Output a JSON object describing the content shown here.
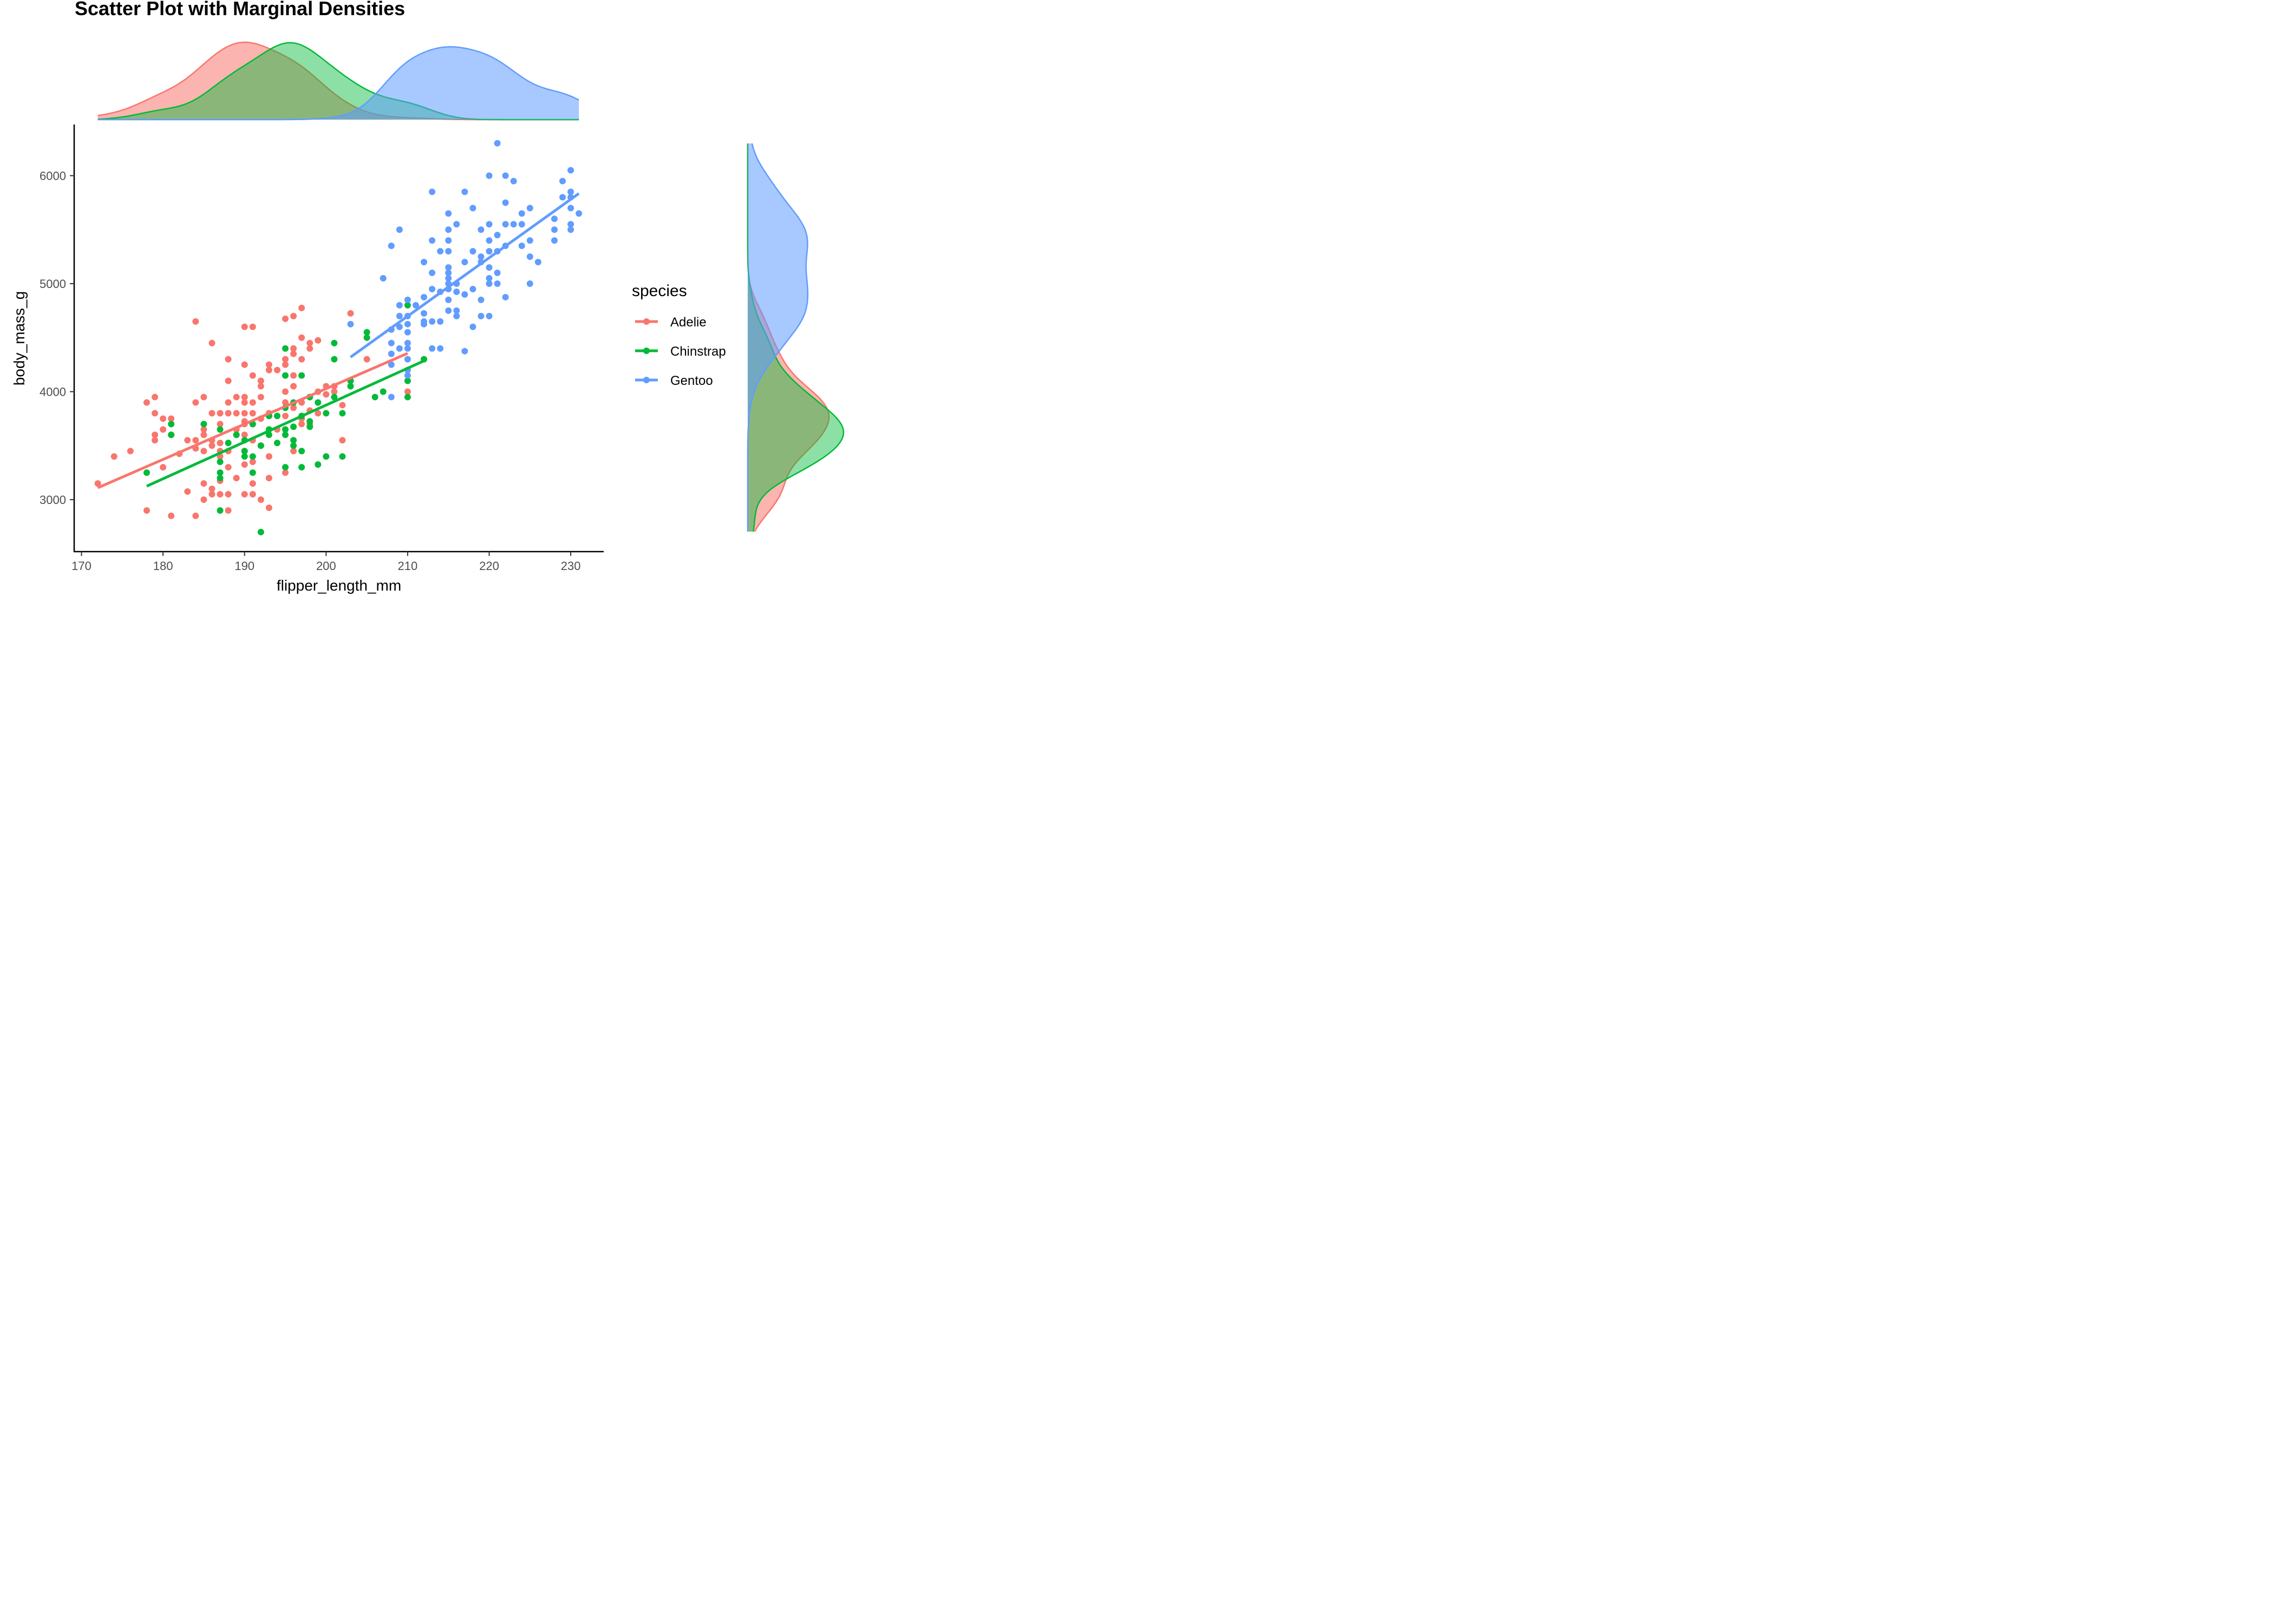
{
  "chart_data": {
    "type": "scatter",
    "title": "Scatter Plot with Marginal Densities",
    "xlabel": "flipper_length_mm",
    "ylabel": "body_mass_g",
    "xlim": [
      169,
      234
    ],
    "ylim": [
      2540,
      6460
    ],
    "xticks": [
      170,
      180,
      190,
      200,
      210,
      220,
      230
    ],
    "yticks": [
      3000,
      4000,
      5000,
      6000
    ],
    "grid": false,
    "legend": {
      "title": "species",
      "position": "right",
      "entries": [
        "Adelie",
        "Chinstrap",
        "Gentoo"
      ]
    },
    "marginals": {
      "top": "density of flipper_length_mm by species",
      "right": "density of body_mass_g by species"
    },
    "series": [
      {
        "name": "Adelie",
        "color": "#F8766D",
        "fit": {
          "x": [
            172,
            210
          ],
          "y": [
            3110,
            4355
          ]
        },
        "points": [
          [
            172,
            3150
          ],
          [
            174,
            3400
          ],
          [
            176,
            3450
          ],
          [
            178,
            3900
          ],
          [
            178,
            2900
          ],
          [
            179,
            3950
          ],
          [
            179,
            3800
          ],
          [
            179,
            3600
          ],
          [
            179,
            3550
          ],
          [
            180,
            3750
          ],
          [
            180,
            3650
          ],
          [
            180,
            3300
          ],
          [
            181,
            2850
          ],
          [
            181,
            3600
          ],
          [
            181,
            3750
          ],
          [
            182,
            3425
          ],
          [
            183,
            3550
          ],
          [
            183,
            3075
          ],
          [
            184,
            4650
          ],
          [
            184,
            3900
          ],
          [
            184,
            3550
          ],
          [
            184,
            3475
          ],
          [
            184,
            2850
          ],
          [
            185,
            3950
          ],
          [
            185,
            3650
          ],
          [
            185,
            3600
          ],
          [
            185,
            3450
          ],
          [
            185,
            3150
          ],
          [
            185,
            3000
          ],
          [
            186,
            4450
          ],
          [
            186,
            3800
          ],
          [
            186,
            3550
          ],
          [
            186,
            3500
          ],
          [
            186,
            3100
          ],
          [
            186,
            3050
          ],
          [
            187,
            3800
          ],
          [
            187,
            3700
          ],
          [
            187,
            3525
          ],
          [
            187,
            3450
          ],
          [
            187,
            3400
          ],
          [
            187,
            3175
          ],
          [
            187,
            3050
          ],
          [
            188,
            4300
          ],
          [
            188,
            4100
          ],
          [
            188,
            3900
          ],
          [
            188,
            3800
          ],
          [
            188,
            3450
          ],
          [
            188,
            3300
          ],
          [
            188,
            3050
          ],
          [
            188,
            2900
          ],
          [
            189,
            3950
          ],
          [
            189,
            3800
          ],
          [
            189,
            3650
          ],
          [
            189,
            3600
          ],
          [
            189,
            3200
          ],
          [
            190,
            4600
          ],
          [
            190,
            4250
          ],
          [
            190,
            3950
          ],
          [
            190,
            3900
          ],
          [
            190,
            3800
          ],
          [
            190,
            3725
          ],
          [
            190,
            3700
          ],
          [
            190,
            3600
          ],
          [
            190,
            3450
          ],
          [
            190,
            3325
          ],
          [
            190,
            3050
          ],
          [
            191,
            4600
          ],
          [
            191,
            4150
          ],
          [
            191,
            3900
          ],
          [
            191,
            3800
          ],
          [
            191,
            3700
          ],
          [
            191,
            3550
          ],
          [
            191,
            3350
          ],
          [
            191,
            3150
          ],
          [
            191,
            3050
          ],
          [
            192,
            4100
          ],
          [
            192,
            4050
          ],
          [
            192,
            3950
          ],
          [
            192,
            3750
          ],
          [
            192,
            3500
          ],
          [
            192,
            3000
          ],
          [
            193,
            4250
          ],
          [
            193,
            4200
          ],
          [
            193,
            3800
          ],
          [
            193,
            3775
          ],
          [
            193,
            3400
          ],
          [
            193,
            3200
          ],
          [
            193,
            2925
          ],
          [
            194,
            4200
          ],
          [
            194,
            3650
          ],
          [
            195,
            4675
          ],
          [
            195,
            4300
          ],
          [
            195,
            4250
          ],
          [
            195,
            4000
          ],
          [
            195,
            3900
          ],
          [
            195,
            3775
          ],
          [
            195,
            3650
          ],
          [
            195,
            3250
          ],
          [
            196,
            4700
          ],
          [
            196,
            4400
          ],
          [
            196,
            4350
          ],
          [
            196,
            4150
          ],
          [
            196,
            4050
          ],
          [
            196,
            3850
          ],
          [
            196,
            3450
          ],
          [
            197,
            4775
          ],
          [
            197,
            4500
          ],
          [
            197,
            4300
          ],
          [
            197,
            3900
          ],
          [
            197,
            3750
          ],
          [
            197,
            3700
          ],
          [
            198,
            4450
          ],
          [
            198,
            4400
          ],
          [
            198,
            3950
          ],
          [
            198,
            3825
          ],
          [
            198,
            3700
          ],
          [
            199,
            4475
          ],
          [
            199,
            4000
          ],
          [
            199,
            3800
          ],
          [
            200,
            4050
          ],
          [
            200,
            3975
          ],
          [
            201,
            4050
          ],
          [
            201,
            4000
          ],
          [
            202,
            3875
          ],
          [
            202,
            3550
          ],
          [
            203,
            4725
          ],
          [
            205,
            4300
          ],
          [
            210,
            4000
          ]
        ]
      },
      {
        "name": "Chinstrap",
        "color": "#00BA38",
        "fit": {
          "x": [
            178,
            212
          ],
          "y": [
            3125,
            4285
          ]
        },
        "points": [
          [
            178,
            3250
          ],
          [
            181,
            3700
          ],
          [
            181,
            3600
          ],
          [
            185,
            3700
          ],
          [
            187,
            3650
          ],
          [
            187,
            3350
          ],
          [
            187,
            3250
          ],
          [
            187,
            3200
          ],
          [
            187,
            2900
          ],
          [
            188,
            3525
          ],
          [
            189,
            3600
          ],
          [
            190,
            3550
          ],
          [
            190,
            3450
          ],
          [
            190,
            3400
          ],
          [
            191,
            3700
          ],
          [
            191,
            3400
          ],
          [
            191,
            3250
          ],
          [
            192,
            3500
          ],
          [
            192,
            2700
          ],
          [
            193,
            3775
          ],
          [
            193,
            3650
          ],
          [
            193,
            3600
          ],
          [
            194,
            3775
          ],
          [
            194,
            3525
          ],
          [
            195,
            4400
          ],
          [
            195,
            4150
          ],
          [
            195,
            3850
          ],
          [
            195,
            3650
          ],
          [
            195,
            3600
          ],
          [
            195,
            3300
          ],
          [
            196,
            3900
          ],
          [
            196,
            3675
          ],
          [
            196,
            3550
          ],
          [
            196,
            3500
          ],
          [
            197,
            4150
          ],
          [
            197,
            3775
          ],
          [
            197,
            3450
          ],
          [
            197,
            3300
          ],
          [
            198,
            3950
          ],
          [
            198,
            3725
          ],
          [
            198,
            3675
          ],
          [
            199,
            3900
          ],
          [
            199,
            3325
          ],
          [
            200,
            3800
          ],
          [
            200,
            3400
          ],
          [
            201,
            4450
          ],
          [
            201,
            4300
          ],
          [
            201,
            3950
          ],
          [
            202,
            3800
          ],
          [
            202,
            3400
          ],
          [
            203,
            4100
          ],
          [
            203,
            4050
          ],
          [
            205,
            4550
          ],
          [
            205,
            4500
          ],
          [
            206,
            3950
          ],
          [
            207,
            4000
          ],
          [
            210,
            4800
          ],
          [
            210,
            4100
          ],
          [
            210,
            3950
          ],
          [
            212,
            4300
          ]
        ]
      },
      {
        "name": "Gentoo",
        "color": "#619CFF",
        "fit": {
          "x": [
            203,
            231
          ],
          "y": [
            4320,
            5835
          ]
        },
        "points": [
          [
            203,
            4625
          ],
          [
            207,
            5050
          ],
          [
            208,
            5350
          ],
          [
            208,
            4575
          ],
          [
            208,
            4450
          ],
          [
            208,
            4350
          ],
          [
            208,
            4250
          ],
          [
            208,
            3950
          ],
          [
            209,
            5500
          ],
          [
            209,
            4800
          ],
          [
            209,
            4700
          ],
          [
            209,
            4600
          ],
          [
            209,
            4400
          ],
          [
            210,
            4850
          ],
          [
            210,
            4700
          ],
          [
            210,
            4625
          ],
          [
            210,
            4550
          ],
          [
            210,
            4450
          ],
          [
            210,
            4400
          ],
          [
            210,
            4300
          ],
          [
            210,
            4200
          ],
          [
            210,
            4150
          ],
          [
            211,
            4800
          ],
          [
            212,
            5200
          ],
          [
            212,
            4875
          ],
          [
            212,
            4725
          ],
          [
            212,
            4650
          ],
          [
            212,
            4625
          ],
          [
            213,
            5850
          ],
          [
            213,
            5400
          ],
          [
            213,
            5100
          ],
          [
            213,
            4950
          ],
          [
            213,
            4650
          ],
          [
            213,
            4400
          ],
          [
            214,
            5300
          ],
          [
            214,
            4925
          ],
          [
            214,
            4650
          ],
          [
            214,
            4400
          ],
          [
            215,
            5650
          ],
          [
            215,
            5500
          ],
          [
            215,
            5400
          ],
          [
            215,
            5300
          ],
          [
            215,
            5150
          ],
          [
            215,
            5100
          ],
          [
            215,
            5050
          ],
          [
            215,
            5000
          ],
          [
            215,
            4950
          ],
          [
            215,
            4850
          ],
          [
            215,
            4750
          ],
          [
            216,
            5550
          ],
          [
            216,
            5000
          ],
          [
            216,
            4925
          ],
          [
            216,
            4750
          ],
          [
            216,
            4700
          ],
          [
            217,
            5850
          ],
          [
            217,
            5200
          ],
          [
            217,
            4900
          ],
          [
            217,
            4375
          ],
          [
            218,
            5700
          ],
          [
            218,
            5300
          ],
          [
            218,
            4950
          ],
          [
            218,
            4600
          ],
          [
            219,
            5500
          ],
          [
            219,
            5250
          ],
          [
            219,
            5200
          ],
          [
            219,
            4850
          ],
          [
            219,
            4700
          ],
          [
            220,
            6000
          ],
          [
            220,
            5550
          ],
          [
            220,
            5400
          ],
          [
            220,
            5300
          ],
          [
            220,
            5150
          ],
          [
            220,
            5050
          ],
          [
            220,
            5000
          ],
          [
            220,
            4700
          ],
          [
            221,
            6300
          ],
          [
            221,
            5450
          ],
          [
            221,
            5300
          ],
          [
            221,
            5100
          ],
          [
            221,
            5000
          ],
          [
            222,
            6000
          ],
          [
            222,
            5750
          ],
          [
            222,
            5550
          ],
          [
            222,
            5350
          ],
          [
            222,
            4875
          ],
          [
            223,
            5950
          ],
          [
            223,
            5550
          ],
          [
            224,
            5650
          ],
          [
            224,
            5550
          ],
          [
            224,
            5350
          ],
          [
            225,
            5700
          ],
          [
            225,
            5400
          ],
          [
            225,
            5250
          ],
          [
            225,
            5000
          ],
          [
            226,
            5200
          ],
          [
            228,
            5600
          ],
          [
            228,
            5500
          ],
          [
            228,
            5400
          ],
          [
            229,
            5950
          ],
          [
            229,
            5800
          ],
          [
            230,
            6050
          ],
          [
            230,
            5850
          ],
          [
            230,
            5800
          ],
          [
            230,
            5700
          ],
          [
            230,
            5550
          ],
          [
            230,
            5500
          ],
          [
            231,
            5650
          ]
        ]
      }
    ]
  }
}
